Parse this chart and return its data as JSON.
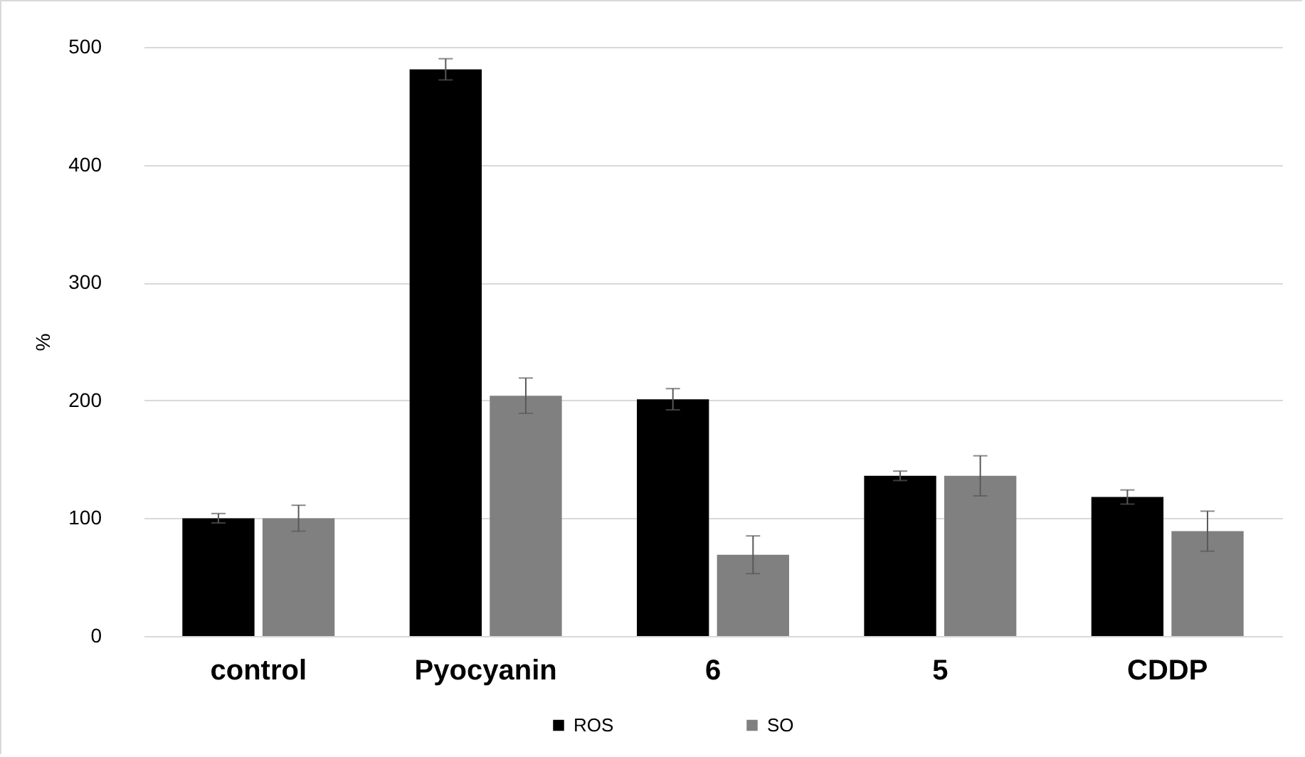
{
  "chart_data": {
    "type": "bar",
    "ylabel": "%",
    "categories": [
      "control",
      "Pyocyanin",
      "6",
      "5",
      "CDDP"
    ],
    "series": [
      {
        "name": "ROS",
        "color": "#000000",
        "values": [
          100,
          481,
          201,
          136,
          118
        ],
        "errors": [
          4,
          9,
          9,
          4,
          6
        ]
      },
      {
        "name": "SO",
        "color": "#808080",
        "values": [
          100,
          204,
          69,
          136,
          89
        ],
        "errors": [
          11,
          15,
          16,
          17,
          17
        ]
      }
    ],
    "ylim": [
      0,
      500
    ],
    "yticks": [
      0,
      100,
      200,
      300,
      400,
      500
    ],
    "grid": "y",
    "legend": "bottom"
  }
}
